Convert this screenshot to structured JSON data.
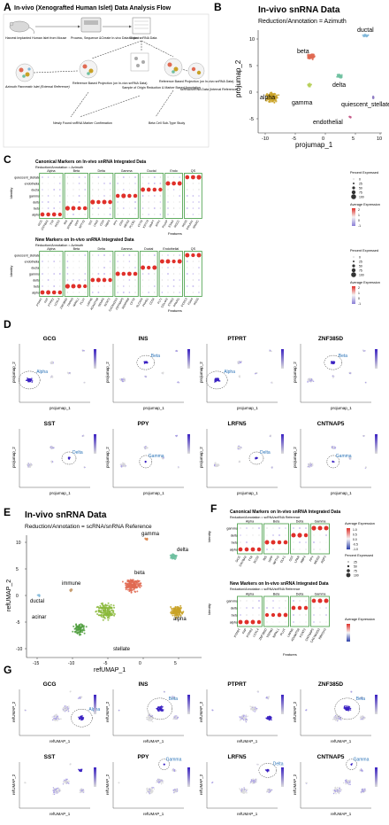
{
  "panelA": {
    "letter": "A",
    "title": "In-vivo (Xenografted Human Islet) Data Analysis Flow",
    "nodes": [
      "Harvest Implanted Human Islet from Mouse",
      "Process, Sequence &Create In-vivo Data Object",
      "In-vivo snRNA Data",
      "Azimuth Pancreatic Islet (External Reference)",
      "Reference Based Projection (on In-vivo snRNA Data)",
      "Sample of Origin Reduction & Marker Based Annotation",
      "Reference Based Projection (on In-vivo snRNA Data)",
      "scRNA/snRNA Data (Internal Reference)",
      "Newly Found snRNA Marker Confirmation",
      "Beta Cell Sub-Type Study"
    ]
  },
  "panelB": {
    "letter": "B",
    "title": "In-vivo snRNA Data",
    "subtitle": "Reduction/Annotation = Azimuth",
    "xlabel": "projumap_1",
    "ylabel": "projumap_2",
    "xticks": [
      "-10",
      "-5",
      "0",
      "5",
      "10"
    ],
    "yticks": [
      "10",
      "5",
      "0",
      "-5"
    ],
    "clusters": [
      "ductal",
      "beta",
      "alpha",
      "delta",
      "gamma",
      "quiescent_stellate",
      "endothelial"
    ]
  },
  "panelC": {
    "letter": "C",
    "top_title": "Canonical Markers on In-vivo snRNA Integrated Data",
    "top_subtitle": "Reduction/Annotation = Azimuth",
    "top_groups": [
      "Alpha",
      "Beta",
      "Delta",
      "Gamma",
      "Ductal",
      "Endo",
      "QS"
    ],
    "top_features": [
      "GCG",
      "CRYBA2",
      "TTR",
      "SCG2",
      "INS",
      "SPINK4",
      "IAPP",
      "NPTX2",
      "SST",
      "LPAR",
      "CGH",
      "RBP4",
      "PPY",
      "CRH",
      "MEIS2",
      "PLCB1",
      "CFTR",
      "KRT19",
      "MMP7",
      "SPP1",
      "PLVAP",
      "ESAM",
      "RGCC",
      "RGS5",
      "COL6A1",
      "SPARC"
    ],
    "top_identity": [
      "quiescent_stellate",
      "endothelial",
      "ductal",
      "gamma",
      "delta",
      "beta",
      "alpha"
    ],
    "bottom_title": "New Markers on In-vivo snRNA Integrated Data",
    "bottom_subtitle": "Reduction/Annotation = Azimuth",
    "bottom_groups": [
      "Alpha",
      "Beta",
      "Delta",
      "Gamma",
      "Ductal",
      "Endothelial",
      "QS"
    ],
    "bottom_features": [
      "PTPRT",
      "FAP",
      "PTPRZ",
      "LOXL4",
      "ZNF385D",
      "TRPM3",
      "NIPAL1",
      "PLUT",
      "LRFN5",
      "ADAMTS8",
      "SEMA5",
      "KCNT2",
      "CACNA2D3",
      "CNTNAP5",
      "SERPINB",
      "CFTR",
      "SLC4A4",
      "PKHD1",
      "CD34",
      "FLT1",
      "COL4A2",
      "STAG2",
      "PPARG",
      "CCDC3",
      "FGD4",
      "RGS5"
    ],
    "features_label": "Features",
    "identity_label": "Identity",
    "legend_pct_title": "Percent Expressed",
    "legend_pct_values": [
      "0",
      "25",
      "50",
      "75",
      "100"
    ],
    "legend_avg_title": "Average Expression",
    "legend_avg_values": [
      "2",
      "1",
      "0",
      "-1"
    ]
  },
  "panelD": {
    "letter": "D",
    "genes": [
      "GCG",
      "INS",
      "PTPRT",
      "ZNF385D",
      "SST",
      "PPY",
      "LRFN5",
      "CNTNAP5"
    ],
    "cell_labels": [
      "Alpha",
      "Beta",
      "Alpha",
      "Beta",
      "Delta",
      "Gamma",
      "Delta",
      "Gamma"
    ],
    "xlabel": "projumap_1",
    "ylabel": "projumap_2"
  },
  "panelE": {
    "letter": "E",
    "title": "In-vivo snRNA Data",
    "subtitle": "Reduction/Annotation = scRNA/snRNA Reference",
    "xlabel": "refUMAP_1",
    "ylabel": "refUMAP_2",
    "xticks": [
      "-15",
      "-10",
      "-5",
      "0",
      "5"
    ],
    "yticks": [
      "10",
      "5",
      "0",
      "-5",
      "-10"
    ],
    "clusters": [
      "gamma",
      "delta",
      "beta",
      "immune",
      "ductal",
      "acinar",
      "alpha",
      "stellate"
    ]
  },
  "panelF": {
    "letter": "F",
    "top_title": "Canonical Markers on In-vivo snRNA Integrated Data",
    "top_subtitle": "Reduction/Annotation = scRNA/snRNA Reference",
    "bottom_title": "New Markers on In-vivo snRNA Integrated Data",
    "bottom_subtitle": "Reduction/Annotation = scRNA/snRNA Reference",
    "groups": [
      "Alpha",
      "Beta",
      "Delta",
      "Gamma"
    ],
    "top_features": [
      "GCG",
      "CRYBA2",
      "TTR",
      "SCG2",
      "INS",
      "IAPP",
      "NPTX2",
      "DLK1",
      "SST",
      "LPAR",
      "RBP4",
      "PPY",
      "MEIS2",
      "AQP3"
    ],
    "bottom_features": [
      "PTPRT",
      "FAP",
      "PTPRZ",
      "LOXL4",
      "ZNF385D",
      "TRPM3",
      "NIPAL1",
      "PLUT",
      "LRFN5",
      "ADAMTS8",
      "KCNT2",
      "CNTNAP5",
      "CACNA2D3",
      "RBFOX3"
    ],
    "identity": [
      "gamma",
      "delta",
      "beta",
      "alpha"
    ],
    "features_label": "Features",
    "identity_label": "Identity",
    "legend_avg_title": "Average Expression",
    "legend_avg_values": [
      "1.0",
      "0.5",
      "0.0",
      "-0.5",
      "-1.0"
    ],
    "legend_pct_title": "Percent Expressed",
    "legend_pct_values": [
      "25",
      "50",
      "75",
      "100"
    ]
  },
  "panelG": {
    "letter": "G",
    "genes": [
      "GCG",
      "INS",
      "PTPRT",
      "ZNF385D",
      "SST",
      "PPY",
      "LRFN5",
      "CNTNAP5"
    ],
    "cell_labels": [
      "Alpha",
      "Beta",
      "",
      "Beta",
      "",
      "Gamma",
      "Delta",
      "Gamma"
    ],
    "xlabel": "refUMAP_1",
    "ylabel": "refUMAP_2"
  },
  "colors": {
    "alpha": "#c9a227",
    "beta": "#e06a52",
    "delta": "#6fc0a0",
    "gamma": "#b8cf5a",
    "ductal": "#7fb7d9",
    "endothelial": "#c65c8a",
    "qs": "#8e7cc3",
    "feature_high": "#3b22c2",
    "feature_low": "#dcdcdc",
    "dot_high": "#e0302a",
    "dot_low": "#f3e4e4",
    "box_green": "#3f9a3f"
  }
}
